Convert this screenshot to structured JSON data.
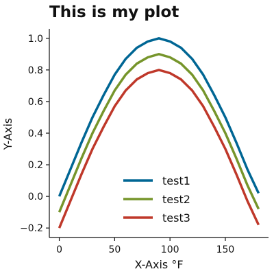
{
  "chart_data": {
    "type": "line",
    "title": "This is my plot",
    "xlabel": "X-Axis °F",
    "ylabel": "Y-Axis",
    "xlim": [
      -9,
      189
    ],
    "ylim": [
      -0.26,
      1.06
    ],
    "x_ticks": [
      0,
      50,
      100,
      150
    ],
    "x_tick_labels": [
      "0",
      "50",
      "100",
      "150"
    ],
    "y_ticks": [
      -0.2,
      0.0,
      0.2,
      0.4,
      0.6,
      0.8,
      1.0
    ],
    "y_tick_labels": [
      "−0.2",
      "0.0",
      "0.2",
      "0.4",
      "0.6",
      "0.8",
      "1.0"
    ],
    "grid": false,
    "legend_position": "lower-center",
    "x": [
      0,
      10,
      20,
      30,
      40,
      50,
      60,
      70,
      80,
      90,
      100,
      110,
      120,
      130,
      140,
      150,
      160,
      170,
      180
    ],
    "series": [
      {
        "name": "test1",
        "color": "#006694",
        "values": [
          0.0,
          0.17,
          0.34,
          0.5,
          0.64,
          0.77,
          0.87,
          0.94,
          0.98,
          1.0,
          0.98,
          0.94,
          0.87,
          0.77,
          0.64,
          0.5,
          0.34,
          0.17,
          0.02
        ]
      },
      {
        "name": "test2",
        "color": "#76952B",
        "values": [
          -0.1,
          0.07,
          0.24,
          0.4,
          0.54,
          0.67,
          0.77,
          0.84,
          0.88,
          0.9,
          0.88,
          0.84,
          0.77,
          0.67,
          0.54,
          0.4,
          0.24,
          0.07,
          -0.08
        ]
      },
      {
        "name": "test3",
        "color": "#BF382A",
        "values": [
          -0.2,
          -0.03,
          0.14,
          0.3,
          0.44,
          0.57,
          0.67,
          0.74,
          0.78,
          0.8,
          0.78,
          0.74,
          0.67,
          0.57,
          0.44,
          0.3,
          0.14,
          -0.03,
          -0.18
        ]
      }
    ]
  }
}
